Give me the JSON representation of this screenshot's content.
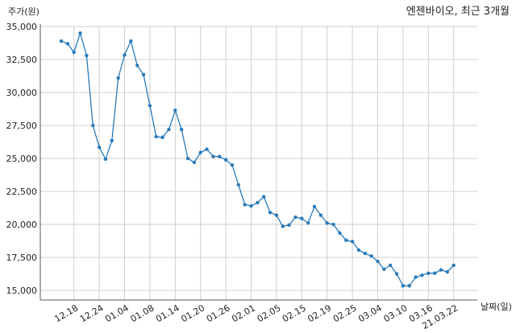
{
  "chart_data": {
    "type": "line",
    "title": "엔젠바이오, 최근 3개월",
    "xlabel": "날짜(일)",
    "ylabel": "주가(원)",
    "ylim": [
      15000,
      35000
    ],
    "yticks": [
      "15,000",
      "17,500",
      "20,000",
      "22,500",
      "25,000",
      "27,500",
      "30,000",
      "32,500",
      "35,000"
    ],
    "ytick_values": [
      15000,
      17500,
      20000,
      22500,
      25000,
      27500,
      30000,
      32500,
      35000
    ],
    "xtick_labels": [
      "12.18",
      "12.24",
      "01.04",
      "01.08",
      "01.14",
      "01.20",
      "01.26",
      "02.01",
      "02.05",
      "02.15",
      "02.19",
      "02.25",
      "03.04",
      "03.10",
      "03.16",
      "21.03.22"
    ],
    "xtick_index": [
      2,
      6,
      10,
      14,
      18,
      22,
      26,
      30,
      34,
      38,
      42,
      46,
      50,
      54,
      58,
      62
    ],
    "grid": true,
    "color": "#2a7ab9",
    "values": [
      33900,
      33700,
      33050,
      34500,
      32800,
      27500,
      25850,
      24950,
      26350,
      31100,
      32850,
      33900,
      32050,
      31350,
      29000,
      26650,
      26600,
      27200,
      28650,
      27200,
      25000,
      24700,
      25450,
      25700,
      25150,
      25150,
      24900,
      24500,
      23000,
      21500,
      21400,
      21650,
      22100,
      20900,
      20700,
      19850,
      19950,
      20550,
      20450,
      20100,
      21350,
      20700,
      20100,
      20000,
      19350,
      18800,
      18700,
      18050,
      17800,
      17600,
      17200,
      16600,
      16900,
      16250,
      15350,
      15350,
      16000,
      16150,
      16300,
      16300,
      16550,
      16400,
      16900
    ]
  }
}
